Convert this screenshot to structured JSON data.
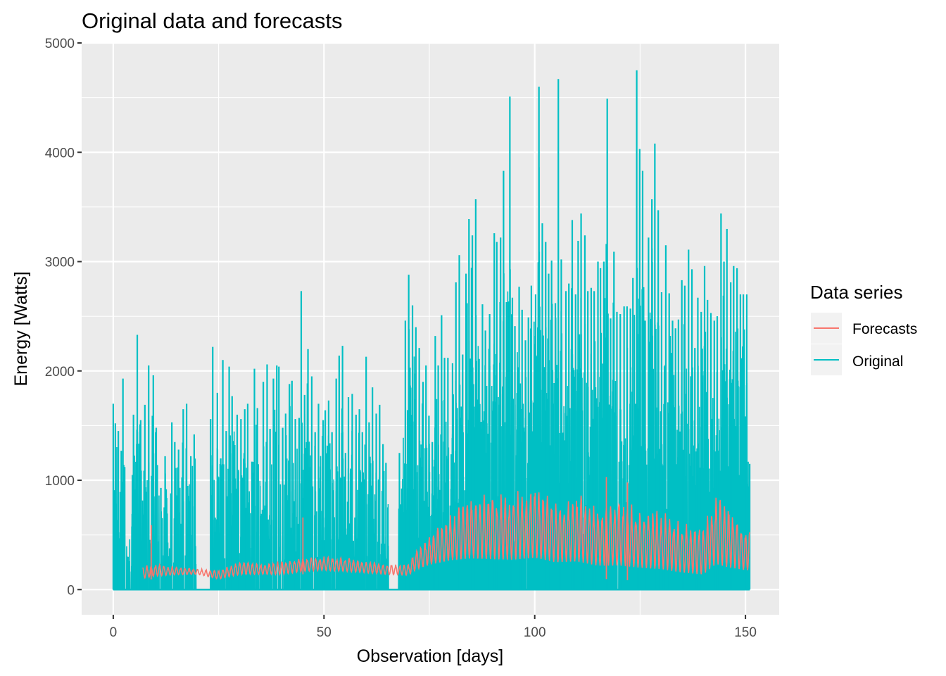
{
  "chart_data": {
    "type": "line",
    "title": "Original data and forecasts",
    "xlabel": "Observation [days]",
    "ylabel": "Energy [Watts]",
    "xlim": [
      -7.5,
      158
    ],
    "ylim": [
      -230,
      5000
    ],
    "xticks": [
      0,
      50,
      100,
      150
    ],
    "xtick_labels": [
      "0",
      "50",
      "100",
      "150"
    ],
    "yticks": [
      0,
      1000,
      2000,
      3000,
      4000,
      5000
    ],
    "ytick_labels": [
      "0",
      "1000",
      "2000",
      "3000",
      "4000",
      "5000"
    ],
    "grid": true,
    "background": "#ebebeb",
    "legend": {
      "title": "Data series",
      "position": "right",
      "entries": [
        "Forecasts",
        "Original"
      ]
    },
    "series": [
      {
        "name": "Original",
        "color": "#00bfc4",
        "x_start": 0,
        "x_end": 151,
        "description_of_pattern": "dense daily spikes; gaps near day 20-23 and 65-70",
        "peaks": [
          [
            0,
            1700
          ],
          [
            0.5,
            1520
          ],
          [
            1.2,
            1450
          ],
          [
            1.9,
            1270
          ],
          [
            2.3,
            1930
          ],
          [
            3.5,
            300
          ],
          [
            4.8,
            1600
          ],
          [
            5.7,
            2330
          ],
          [
            6.5,
            1550
          ],
          [
            7.5,
            1690
          ],
          [
            8.4,
            1550
          ],
          [
            8.4,
            2050
          ],
          [
            9.5,
            1960
          ],
          [
            10.2,
            1480
          ],
          [
            11.3,
            930
          ],
          [
            12.3,
            1220
          ],
          [
            13.9,
            1530
          ],
          [
            14.6,
            1350
          ],
          [
            15.5,
            1280
          ],
          [
            16.6,
            1650
          ],
          [
            17.4,
            1700
          ],
          [
            18.4,
            1220
          ],
          [
            19.2,
            1420
          ],
          [
            23.1,
            1560
          ],
          [
            23.6,
            2220
          ],
          [
            24.7,
            1800
          ],
          [
            25.5,
            1200
          ],
          [
            26.0,
            2100
          ],
          [
            26.8,
            1450
          ],
          [
            27.5,
            2040
          ],
          [
            28.2,
            1770
          ],
          [
            29.4,
            1600
          ],
          [
            30.3,
            1560
          ],
          [
            31.2,
            1650
          ],
          [
            31.9,
            1700
          ],
          [
            32.9,
            1170
          ],
          [
            33.5,
            2020
          ],
          [
            34.2,
            1660
          ],
          [
            35.6,
            1900
          ],
          [
            36.5,
            2060
          ],
          [
            37.2,
            1470
          ],
          [
            38.0,
            1930
          ],
          [
            38.8,
            2050
          ],
          [
            39.3,
            2040
          ],
          [
            40.2,
            1480
          ],
          [
            40.9,
            1610
          ],
          [
            41.8,
            1880
          ],
          [
            42.4,
            1910
          ],
          [
            43.2,
            1560
          ],
          [
            44.1,
            1570
          ],
          [
            44.6,
            2730
          ],
          [
            45.4,
            1780
          ],
          [
            46.2,
            2200
          ],
          [
            47.1,
            1950
          ],
          [
            47.9,
            1440
          ],
          [
            48.7,
            1700
          ],
          [
            49.8,
            1550
          ],
          [
            50.3,
            1640
          ],
          [
            51.1,
            1730
          ],
          [
            51.9,
            1440
          ],
          [
            52.9,
            1930
          ],
          [
            53.6,
            2140
          ],
          [
            54.4,
            2230
          ],
          [
            55.1,
            1250
          ],
          [
            55.8,
            1760
          ],
          [
            56.7,
            1790
          ],
          [
            57.6,
            1600
          ],
          [
            58.4,
            1650
          ],
          [
            59.1,
            1440
          ],
          [
            60.0,
            2130
          ],
          [
            60.7,
            1530
          ],
          [
            61.5,
            1850
          ],
          [
            62.4,
            1610
          ],
          [
            63.2,
            1690
          ],
          [
            64.0,
            1330
          ],
          [
            64.7,
            1160
          ],
          [
            67.9,
            1250
          ],
          [
            69.3,
            2460
          ],
          [
            70.1,
            2880
          ],
          [
            71.0,
            2600
          ],
          [
            71.8,
            2400
          ],
          [
            72.6,
            2210
          ],
          [
            73.5,
            1900
          ],
          [
            74.2,
            2050
          ],
          [
            74.9,
            1590
          ],
          [
            75.7,
            1350
          ],
          [
            76.4,
            2320
          ],
          [
            77.1,
            2050
          ],
          [
            77.9,
            2510
          ],
          [
            78.6,
            2120
          ],
          [
            79.4,
            2120
          ],
          [
            80.5,
            2070
          ],
          [
            81.3,
            2810
          ],
          [
            82.1,
            3060
          ],
          [
            82.9,
            2150
          ],
          [
            83.7,
            2890
          ],
          [
            84.4,
            3390
          ],
          [
            85.2,
            3240
          ],
          [
            86.0,
            3570
          ],
          [
            86.8,
            2110
          ],
          [
            87.6,
            2610
          ],
          [
            88.3,
            2370
          ],
          [
            89.3,
            2520
          ],
          [
            90.4,
            3260
          ],
          [
            91.0,
            3180
          ],
          [
            91.9,
            3220
          ],
          [
            92.6,
            3830
          ],
          [
            93.3,
            2630
          ],
          [
            94.1,
            4510
          ],
          [
            94.7,
            2670
          ],
          [
            95.3,
            2410
          ],
          [
            96.3,
            2770
          ],
          [
            97.0,
            2560
          ],
          [
            97.8,
            2280
          ],
          [
            98.5,
            2490
          ],
          [
            99.2,
            2780
          ],
          [
            100.2,
            2700
          ],
          [
            101.0,
            4600
          ],
          [
            101.8,
            3350
          ],
          [
            102.6,
            3180
          ],
          [
            103.3,
            2890
          ],
          [
            104.0,
            3010
          ],
          [
            104.9,
            2620
          ],
          [
            105.6,
            4670
          ],
          [
            106.3,
            3020
          ],
          [
            107.4,
            2730
          ],
          [
            108.1,
            2800
          ],
          [
            108.9,
            3380
          ],
          [
            109.7,
            2700
          ],
          [
            110.3,
            3190
          ],
          [
            111.0,
            3440
          ],
          [
            111.9,
            3240
          ],
          [
            112.6,
            2730
          ],
          [
            113.4,
            2760
          ],
          [
            114.1,
            2730
          ],
          [
            115.0,
            3000
          ],
          [
            115.6,
            2940
          ],
          [
            116.4,
            3000
          ],
          [
            117.2,
            4490
          ],
          [
            118.0,
            2480
          ],
          [
            118.8,
            3090
          ],
          [
            119.5,
            2540
          ],
          [
            120.3,
            2520
          ],
          [
            121.2,
            2590
          ],
          [
            121.9,
            2590
          ],
          [
            122.7,
            2570
          ],
          [
            123.3,
            2850
          ],
          [
            124.2,
            4750
          ],
          [
            124.9,
            4030
          ],
          [
            125.6,
            3830
          ],
          [
            126.2,
            2460
          ],
          [
            127.0,
            3220
          ],
          [
            127.8,
            3570
          ],
          [
            128.5,
            4080
          ],
          [
            129.3,
            3470
          ],
          [
            130.1,
            2720
          ],
          [
            131.1,
            3150
          ],
          [
            131.9,
            2710
          ],
          [
            132.7,
            2460
          ],
          [
            133.4,
            2390
          ],
          [
            134.1,
            2470
          ],
          [
            134.9,
            2830
          ],
          [
            135.6,
            2780
          ],
          [
            136.5,
            3110
          ],
          [
            137.3,
            2930
          ],
          [
            138.0,
            2210
          ],
          [
            138.7,
            2670
          ],
          [
            139.5,
            2540
          ],
          [
            140.3,
            2960
          ],
          [
            141.0,
            2650
          ],
          [
            141.8,
            2530
          ],
          [
            142.6,
            2460
          ],
          [
            143.3,
            2500
          ],
          [
            144.2,
            3440
          ],
          [
            144.9,
            3000
          ],
          [
            145.6,
            3300
          ],
          [
            146.5,
            2810
          ],
          [
            147.2,
            2960
          ],
          [
            148.0,
            2940
          ],
          [
            148.8,
            2700
          ],
          [
            149.5,
            2700
          ],
          [
            150.3,
            2700
          ],
          [
            151.0,
            1150
          ]
        ]
      },
      {
        "name": "Forecasts",
        "color": "#f8766d",
        "x_start": 7,
        "x_end": 151,
        "description_of_pattern": "oscillating forecast; baseline ~150-250 until day 70, then ~200-1000 with daily swings",
        "envelope": [
          [
            7,
            80,
            240
          ],
          [
            10,
            100,
            260
          ],
          [
            15,
            120,
            230
          ],
          [
            20,
            130,
            200
          ],
          [
            25,
            80,
            190
          ],
          [
            30,
            110,
            300
          ],
          [
            35,
            120,
            260
          ],
          [
            40,
            110,
            300
          ],
          [
            45,
            140,
            320
          ],
          [
            50,
            150,
            330
          ],
          [
            55,
            140,
            320
          ],
          [
            60,
            130,
            290
          ],
          [
            65,
            120,
            250
          ],
          [
            70,
            110,
            260
          ],
          [
            72,
            150,
            400
          ],
          [
            75,
            170,
            550
          ],
          [
            80,
            180,
            770
          ],
          [
            85,
            160,
            1000
          ],
          [
            90,
            150,
            1000
          ],
          [
            95,
            140,
            1030
          ],
          [
            100,
            150,
            1100
          ],
          [
            105,
            130,
            930
          ],
          [
            110,
            120,
            1040
          ],
          [
            115,
            100,
            890
          ],
          [
            120,
            90,
            960
          ],
          [
            125,
            80,
            880
          ],
          [
            130,
            70,
            850
          ],
          [
            135,
            60,
            700
          ],
          [
            140,
            40,
            700
          ],
          [
            143,
            100,
            1000
          ],
          [
            146,
            80,
            900
          ],
          [
            150,
            100,
            620
          ]
        ],
        "notable_spikes": [
          [
            9,
            590
          ],
          [
            45,
            660
          ],
          [
            117,
            1030
          ],
          [
            122,
            980
          ]
        ]
      }
    ]
  }
}
